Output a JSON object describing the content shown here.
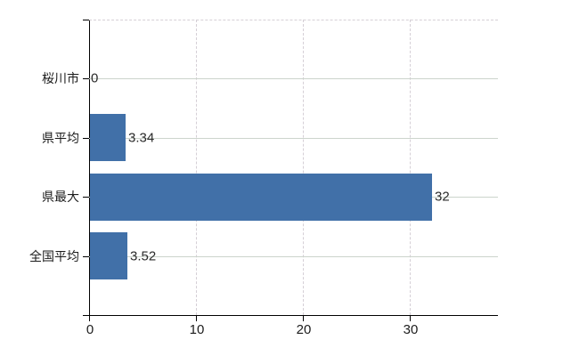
{
  "chart_data": {
    "type": "bar",
    "orientation": "horizontal",
    "title": "",
    "xlabel": "",
    "ylabel": "",
    "categories": [
      "桜川市",
      "県平均",
      "県最大",
      "全国平均"
    ],
    "values": [
      0,
      3.34,
      32,
      3.52
    ],
    "value_labels": [
      "0",
      "3.34",
      "32",
      "3.52"
    ],
    "x_tick_labels": [
      "0",
      "10",
      "20",
      "30"
    ],
    "x_tick_values": [
      0,
      10,
      20,
      30
    ],
    "xlim": [
      0,
      38.25
    ],
    "grid": true,
    "legend": false,
    "colors": {
      "bar": "#4170a8",
      "axis": "#000000",
      "gridline_horizontal": "#ccd4cc",
      "gridline_vertical": "#d5cfd6",
      "plot_top_border": "#d6d0d6",
      "text": "#1c1c1c",
      "background": "#ffffff"
    }
  }
}
